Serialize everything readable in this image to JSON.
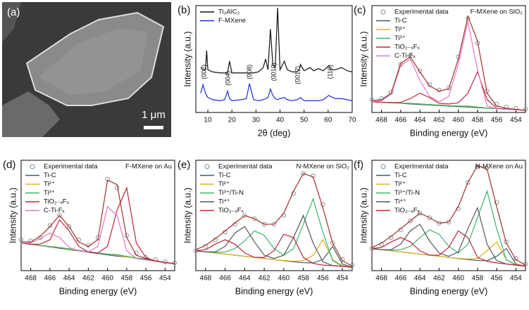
{
  "image_panel": {
    "label": "(a)",
    "scale_bar": "1 μm"
  },
  "chart_data": [
    {
      "type": "line",
      "panel_label": "(b)",
      "xlabel": "2θ (deg)",
      "ylabel": "Intensity (a.u.)",
      "xlim": [
        5,
        70
      ],
      "xticks": [
        10,
        20,
        30,
        40,
        50,
        60,
        70
      ],
      "ylim": [
        0,
        100
      ],
      "legend_loc": "upper left",
      "x": [
        7,
        8,
        9,
        9.5,
        10,
        12,
        15,
        17,
        18.2,
        19,
        20,
        24,
        26,
        27.3,
        29,
        31,
        33,
        34,
        35,
        36,
        37,
        38,
        39,
        40,
        41.8,
        43,
        45,
        47,
        48,
        48.5,
        50,
        52.5,
        54,
        56,
        58,
        60.3,
        61,
        63,
        65.6,
        68,
        70
      ],
      "series": [
        {
          "name": "Ti₃AlC₂",
          "color": "#111111",
          "values": [
            42,
            40,
            40,
            58,
            40,
            38,
            37,
            37,
            37,
            48,
            37,
            37,
            37,
            37,
            37,
            38,
            42,
            50,
            40,
            78,
            45,
            42,
            98,
            40,
            48,
            40,
            38,
            38,
            40,
            45,
            39,
            42,
            39,
            41,
            39,
            44,
            40,
            40,
            42,
            39,
            38
          ]
        },
        {
          "name": "F-MXene",
          "color": "#1a2fd0",
          "values": [
            18,
            26,
            18,
            16,
            14,
            12,
            11,
            12,
            20,
            13,
            11,
            12,
            13,
            27,
            12,
            11,
            12,
            13,
            14,
            22,
            16,
            13,
            12,
            13,
            14,
            12,
            11,
            12,
            13,
            14,
            11,
            11,
            11,
            11,
            12,
            16,
            15,
            13,
            13,
            12,
            11
          ]
        }
      ],
      "annotations": [
        {
          "text": "(002)",
          "x": 8.5,
          "y": 38
        },
        {
          "text": "(004)",
          "x": 18.5,
          "y": 32
        },
        {
          "text": "(008)",
          "x": 27.5,
          "y": 38
        },
        {
          "text": "(0010)",
          "x": 37.5,
          "y": 38
        },
        {
          "text": "(0012)",
          "x": 47.5,
          "y": 35
        },
        {
          "text": "(110)",
          "x": 61,
          "y": 38
        }
      ]
    },
    {
      "type": "line",
      "panel_label": "(c)",
      "xlabel": "Binding energy (eV)",
      "ylabel": "Intensity (a.u.)",
      "sample_label": "F-MXene on SiO₂",
      "xlim": [
        469,
        453
      ],
      "xticks": [
        468,
        466,
        464,
        462,
        460,
        458,
        456,
        454
      ],
      "ylim": [
        0,
        100
      ],
      "legend_loc": "upper left",
      "x": [
        469,
        468,
        467,
        466,
        465,
        464,
        463,
        462,
        461,
        460,
        459,
        458,
        457,
        456,
        455,
        454,
        453
      ],
      "series": [
        {
          "name": "Experimental data",
          "color": "#8a8a8a",
          "style": "markers",
          "values": [
            12,
            13,
            19,
            45,
            53,
            39,
            26,
            21,
            23,
            52,
            88,
            65,
            20,
            8,
            5,
            4,
            3
          ]
        },
        {
          "name": "Ti-C",
          "color": "#3d5a6c",
          "values": [
            10,
            9.5,
            9,
            8.5,
            8,
            7.5,
            7,
            6.5,
            6,
            5.5,
            5,
            4.5,
            4,
            3.6,
            3.5,
            2.6,
            2
          ]
        },
        {
          "name": "Ti²⁺",
          "color": "#e0b020",
          "values": [
            10,
            9.5,
            9,
            8.6,
            8.5,
            8,
            7.5,
            7,
            6.5,
            6,
            5.6,
            5,
            4.2,
            3.5,
            3,
            2.5,
            2
          ]
        },
        {
          "name": "Ti³⁺",
          "color": "#3cb371",
          "values": [
            10,
            9.6,
            9.3,
            9,
            8.6,
            8,
            7.3,
            6.8,
            6.3,
            6,
            6,
            5,
            4.2,
            3.5,
            3,
            2.5,
            2
          ]
        },
        {
          "name": "TiO₂₋ₓFₓ",
          "color": "#c0243a",
          "values": [
            10,
            9.5,
            9.2,
            9.5,
            13,
            18,
            14,
            8.5,
            8,
            9,
            18,
            38,
            12,
            4,
            3,
            2.5,
            2
          ]
        },
        {
          "name": "C-Ti-Fₓ",
          "color": "#e377c2",
          "values": [
            10,
            11,
            17,
            44,
            50,
            30,
            15,
            10,
            15,
            45,
            85,
            40,
            6,
            3.5,
            3,
            2.5,
            2
          ]
        },
        {
          "color": "#a0302a",
          "values": [
            11,
            12,
            18,
            46,
            52,
            38,
            25,
            20,
            22,
            50,
            90,
            67,
            18,
            6,
            4,
            3,
            2
          ]
        }
      ]
    },
    {
      "type": "line",
      "panel_label": "(d)",
      "xlabel": "Binding energy (eV)",
      "ylabel": "Intensity (a.u.)",
      "sample_label": "F-MXene on Au",
      "xlim": [
        469,
        453
      ],
      "xticks": [
        468,
        466,
        464,
        462,
        460,
        458,
        456,
        454
      ],
      "ylim": [
        0,
        100
      ],
      "legend_loc": "upper left",
      "x": [
        469,
        468,
        467,
        466,
        465,
        464,
        463,
        462,
        461,
        460,
        459,
        458,
        457,
        456,
        455,
        454,
        453
      ],
      "series": [
        {
          "name": "Experimental data",
          "color": "#8a8a8a",
          "style": "markers",
          "values": [
            28,
            27,
            30,
            41,
            50,
            40,
            28,
            23,
            30,
            83,
            75,
            32,
            16,
            12,
            10,
            8,
            7
          ]
        },
        {
          "name": "Ti-C",
          "color": "#3d5a6c",
          "values": [
            25,
            23.8,
            22.6,
            21.4,
            20.3,
            19.1,
            17.9,
            16.7,
            15.5,
            14.3,
            13.1,
            12.5,
            11.5,
            10.5,
            8.8,
            7.2,
            6
          ]
        },
        {
          "name": "Ti²⁺",
          "color": "#e0b020",
          "values": [
            25,
            23.8,
            22.6,
            21.6,
            20.8,
            19.5,
            18.2,
            17,
            16,
            15,
            14,
            12.5,
            11,
            9.8,
            8.5,
            7.2,
            6
          ]
        },
        {
          "name": "Ti³⁺",
          "color": "#3cb371",
          "values": [
            25,
            23.8,
            22.8,
            22,
            21,
            19.8,
            18.5,
            17.2,
            16,
            15,
            14.5,
            13,
            11.5,
            10,
            8.6,
            7.3,
            6
          ]
        },
        {
          "name": "TiO₂₋ₓFₓ",
          "color": "#c0243a",
          "values": [
            25,
            24,
            24,
            28,
            46,
            36,
            22,
            17,
            16,
            22,
            55,
            75,
            25,
            12,
            8.5,
            7.2,
            6
          ]
        },
        {
          "name": "C-Ti-Fₓ",
          "color": "#e377c2",
          "values": [
            25,
            25,
            29,
            34,
            30,
            21,
            18,
            17,
            22,
            58,
            50,
            18,
            11,
            9.6,
            8.4,
            7.2,
            6
          ]
        },
        {
          "color": "#a0302a",
          "values": [
            26,
            26,
            31,
            40,
            50,
            40,
            26,
            22,
            28,
            82,
            78,
            30,
            14,
            11,
            9,
            7.5,
            6.5
          ]
        }
      ]
    },
    {
      "type": "line",
      "panel_label": "(e)",
      "xlabel": "Binding energy (eV)",
      "ylabel": "Intensity (a.u.)",
      "sample_label": "N-MXene on SiO₂",
      "xlim": [
        469,
        453
      ],
      "xticks": [
        468,
        466,
        464,
        462,
        460,
        458,
        456,
        454
      ],
      "ylim": [
        0,
        100
      ],
      "legend_loc": "upper left",
      "x": [
        469,
        468,
        467,
        466,
        465,
        464,
        463,
        462,
        461,
        460,
        459,
        458,
        457,
        456,
        455,
        454,
        453
      ],
      "series": [
        {
          "name": "Experimental data",
          "color": "#8a8a8a",
          "style": "markers",
          "values": [
            18,
            22,
            28,
            35,
            42,
            50,
            47,
            42,
            42,
            50,
            70,
            88,
            86,
            60,
            25,
            10,
            5
          ]
        },
        {
          "name": "Ti-C",
          "color": "#3d5a6c",
          "values": [
            18,
            17,
            16,
            15,
            14,
            13,
            12,
            11,
            10,
            9,
            8,
            7.2,
            7,
            10,
            22,
            6,
            3
          ]
        },
        {
          "name": "Ti²⁺",
          "color": "#e0b020",
          "values": [
            18,
            17,
            16,
            15,
            14,
            13,
            12,
            11,
            10,
            9.2,
            8.5,
            9,
            14,
            28,
            10,
            4.5,
            3
          ]
        },
        {
          "name": "Ti³⁺/Ti-N",
          "color": "#3cb371",
          "values": [
            18,
            17,
            16.5,
            17,
            20,
            27,
            36,
            32,
            20,
            14,
            20,
            42,
            65,
            35,
            9,
            4,
            3
          ]
        },
        {
          "name": "Ti⁴⁺",
          "color": "#555555",
          "values": [
            18,
            17,
            17,
            22,
            34,
            40,
            26,
            14,
            11,
            14,
            30,
            50,
            25,
            8,
            4.6,
            4,
            3
          ]
        },
        {
          "name": "TiO₂₋ₓFₓ",
          "color": "#c0243a",
          "values": [
            18,
            19,
            24,
            28,
            24,
            16,
            12,
            12,
            18,
            33,
            30,
            12,
            6.5,
            5,
            4.5,
            4,
            3
          ]
        },
        {
          "color": "#a0302a",
          "values": [
            19,
            23,
            29,
            36,
            43,
            50,
            47,
            42,
            42,
            52,
            72,
            88,
            85,
            57,
            25,
            9,
            4
          ]
        }
      ]
    },
    {
      "type": "line",
      "panel_label": "(f)",
      "xlabel": "Binding energy (eV)",
      "ylabel": "Intensity (a.u.)",
      "sample_label": "N-MXene on Au",
      "xlim": [
        469,
        453
      ],
      "xticks": [
        468,
        466,
        464,
        462,
        460,
        458,
        456,
        454
      ],
      "ylim": [
        0,
        100
      ],
      "legend_loc": "upper left",
      "x": [
        469,
        468,
        467,
        466,
        465,
        464,
        463,
        462,
        461,
        460,
        459,
        458,
        457,
        456,
        455,
        454,
        453
      ],
      "series": [
        {
          "name": "Experimental data",
          "color": "#8a8a8a",
          "style": "markers",
          "values": [
            20,
            24,
            30,
            37,
            45,
            52,
            48,
            43,
            44,
            56,
            80,
            94,
            93,
            62,
            26,
            11,
            6
          ]
        },
        {
          "name": "Ti-C",
          "color": "#3d5a6c",
          "values": [
            20,
            19,
            18,
            17,
            16,
            15,
            14,
            13,
            12,
            11,
            10,
            9.2,
            9,
            13,
            20,
            6,
            4
          ]
        },
        {
          "name": "Ti²⁺",
          "color": "#e0b020",
          "values": [
            20,
            19,
            18,
            17,
            16,
            15,
            14,
            13,
            12,
            11.2,
            10.5,
            11,
            18,
            26,
            10,
            5.5,
            4
          ]
        },
        {
          "name": "Ti³⁺/Ti-N",
          "color": "#3cb371",
          "values": [
            20,
            19,
            18.5,
            19,
            22,
            30,
            37,
            33,
            22,
            16,
            24,
            48,
            72,
            38,
            10,
            5,
            4
          ]
        },
        {
          "name": "Ti⁴⁺",
          "color": "#555555",
          "values": [
            20,
            19,
            19,
            24,
            36,
            42,
            27,
            16,
            13,
            17,
            38,
            57,
            24,
            9,
            6,
            5,
            4
          ]
        },
        {
          "name": "TiO₂₋ₓFₓ",
          "color": "#c0243a",
          "values": [
            20,
            21,
            26,
            30,
            26,
            18,
            14,
            14,
            21,
            36,
            30,
            12,
            8.5,
            7,
            6,
            5,
            4
          ]
        },
        {
          "color": "#a0302a",
          "values": [
            21,
            25,
            31,
            38,
            45,
            52,
            48,
            43,
            44,
            58,
            80,
            95,
            92,
            58,
            25,
            10,
            5
          ]
        }
      ]
    }
  ]
}
